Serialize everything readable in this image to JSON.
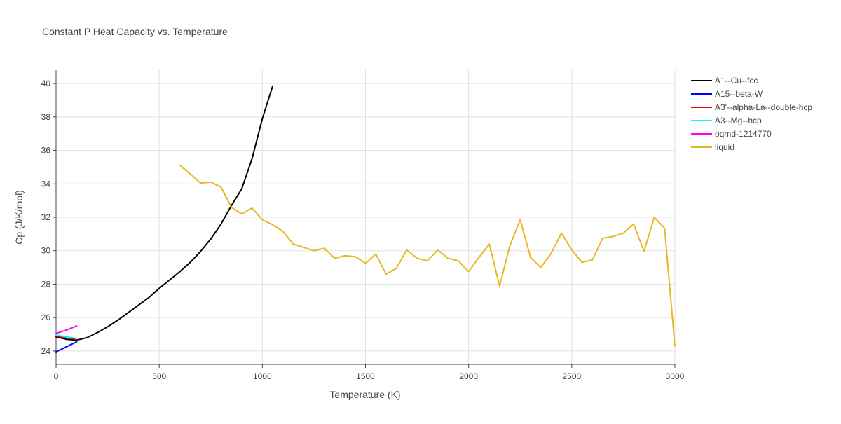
{
  "chart_data": {
    "type": "line",
    "title": "Constant P Heat Capacity vs. Temperature",
    "xlabel": "Temperature (K)",
    "ylabel": "Cp (J/K/mol)",
    "xlim": [
      0,
      3000
    ],
    "ylim": [
      23.2,
      40.8
    ],
    "xticks": [
      0,
      500,
      1000,
      1500,
      2000,
      2500,
      3000
    ],
    "yticks": [
      24,
      26,
      28,
      30,
      32,
      34,
      36,
      38,
      40
    ],
    "grid": true,
    "legend_position": "top-right, outside plot",
    "series": [
      {
        "name": "A1--Cu--fcc",
        "color": "#000000",
        "x": [
          0,
          50,
          100,
          150,
          200,
          250,
          300,
          350,
          400,
          450,
          500,
          550,
          600,
          650,
          700,
          750,
          800,
          850,
          900,
          950,
          1000,
          1050
        ],
        "y": [
          24.85,
          24.7,
          24.65,
          24.8,
          25.1,
          25.45,
          25.85,
          26.3,
          26.75,
          27.2,
          27.75,
          28.25,
          28.75,
          29.3,
          29.95,
          30.7,
          31.6,
          32.7,
          33.7,
          35.5,
          37.9,
          39.85
        ]
      },
      {
        "name": "A15--beta-W",
        "color": "#0000ff",
        "x": [
          0,
          50,
          100
        ],
        "y": [
          23.95,
          24.25,
          24.55
        ]
      },
      {
        "name": "A3'--alpha-La--double-hcp",
        "color": "#ff0000",
        "x": [
          0,
          50,
          100
        ],
        "y": [
          24.9,
          24.8,
          24.7
        ]
      },
      {
        "name": "A3--Mg--hcp",
        "color": "#00ffff",
        "x": [
          0,
          50,
          100
        ],
        "y": [
          24.95,
          24.85,
          24.75
        ]
      },
      {
        "name": "oqmd-1214770",
        "color": "#ff00ff",
        "x": [
          0,
          50,
          100
        ],
        "y": [
          25.05,
          25.25,
          25.5
        ]
      },
      {
        "name": "liquid",
        "color": "#e6b820",
        "x": [
          600,
          650,
          700,
          750,
          800,
          850,
          900,
          950,
          1000,
          1050,
          1100,
          1150,
          1200,
          1250,
          1300,
          1350,
          1400,
          1450,
          1500,
          1550,
          1600,
          1650,
          1700,
          1750,
          1800,
          1850,
          1900,
          1950,
          2000,
          2050,
          2100,
          2150,
          2200,
          2250,
          2300,
          2350,
          2400,
          2450,
          2500,
          2550,
          2600,
          2650,
          2700,
          2750,
          2800,
          2850,
          2900,
          2950,
          3000
        ],
        "y": [
          35.1,
          34.6,
          34.05,
          34.1,
          33.8,
          32.6,
          32.2,
          32.55,
          31.85,
          31.55,
          31.15,
          30.4,
          30.2,
          30.0,
          30.15,
          29.55,
          29.7,
          29.65,
          29.25,
          29.8,
          28.6,
          28.95,
          30.05,
          29.55,
          29.4,
          30.05,
          29.55,
          29.4,
          28.75,
          29.6,
          30.4,
          27.9,
          30.3,
          31.85,
          29.6,
          29.0,
          29.85,
          31.05,
          30.05,
          29.3,
          29.45,
          30.75,
          30.85,
          31.05,
          31.6,
          29.95,
          32.0,
          31.35,
          24.3
        ]
      }
    ]
  }
}
